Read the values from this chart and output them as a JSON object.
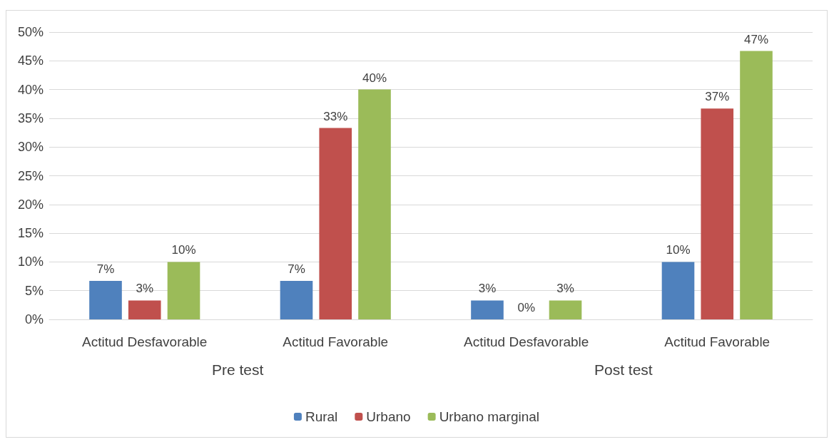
{
  "chart_data": {
    "type": "bar",
    "categories": [
      "Actitud Desfavorable",
      "Actitud Favorable",
      "Actitud Desfavorable",
      "Actitud Favorable"
    ],
    "series": [
      {
        "name": "Rural",
        "color": "#4f81bd",
        "values": [
          6.7,
          6.7,
          3.3,
          10
        ],
        "value_labels": [
          "7%",
          "7%",
          "3%",
          "10%"
        ]
      },
      {
        "name": "Urbano",
        "color": "#c0504d",
        "values": [
          3.3,
          33.3,
          0,
          36.7
        ],
        "value_labels": [
          "3%",
          "33%",
          "0%",
          "37%"
        ]
      },
      {
        "name": "Urbano marginal",
        "color": "#9bbb59",
        "values": [
          10,
          40,
          3.3,
          46.7
        ],
        "value_labels": [
          "10%",
          "40%",
          "3%",
          "47%"
        ]
      }
    ],
    "annotations": [
      "Pre test",
      "Post test"
    ],
    "ylim": [
      0,
      50
    ],
    "yticks": [
      {
        "value": 0,
        "label": "0%"
      },
      {
        "value": 5,
        "label": "5%"
      },
      {
        "value": 10,
        "label": "10%"
      },
      {
        "value": 15,
        "label": "15%"
      },
      {
        "value": 20,
        "label": "20%"
      },
      {
        "value": 25,
        "label": "25%"
      },
      {
        "value": 30,
        "label": "30%"
      },
      {
        "value": 35,
        "label": "35%"
      },
      {
        "value": 40,
        "label": "40%"
      },
      {
        "value": 45,
        "label": "45%"
      },
      {
        "value": 50,
        "label": "50%"
      }
    ],
    "grid": "y",
    "legend": "bottom"
  }
}
